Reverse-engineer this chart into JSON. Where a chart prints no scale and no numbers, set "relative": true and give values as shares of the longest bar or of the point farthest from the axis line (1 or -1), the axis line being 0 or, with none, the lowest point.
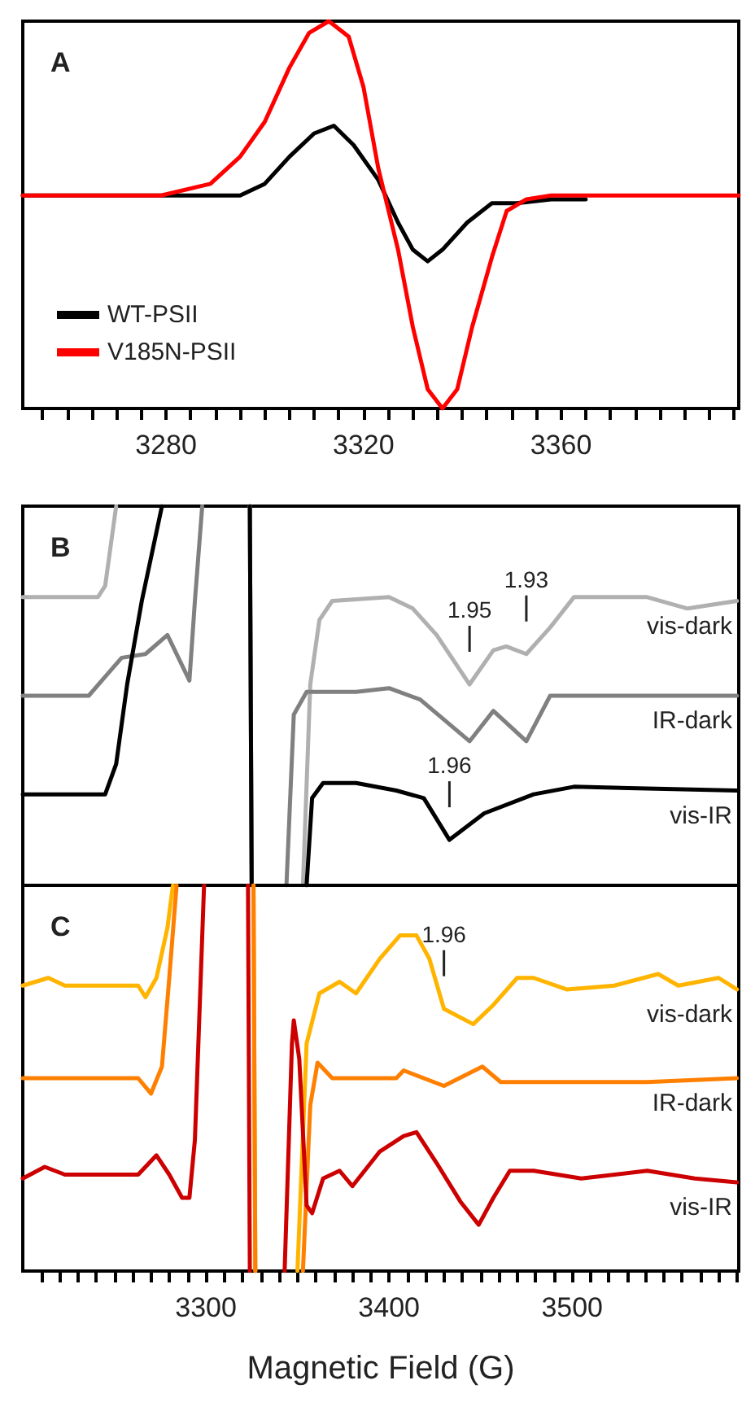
{
  "chart_data": [
    {
      "type": "line",
      "title": "A",
      "relative": true,
      "legend": "bottom left",
      "tick_labels": "x",
      "xlim": [
        3251,
        3396
      ],
      "xticks": [
        {
          "value": 3255,
          "label": null
        },
        {
          "value": 3260,
          "label": null
        },
        {
          "value": 3265,
          "label": null
        },
        {
          "value": 3270,
          "label": null
        },
        {
          "value": 3275,
          "label": null
        },
        3280,
        {
          "value": 3285,
          "label": null
        },
        {
          "value": 3290,
          "label": null
        },
        {
          "value": 3295,
          "label": null
        },
        {
          "value": 3300,
          "label": null
        },
        {
          "value": 3305,
          "label": null
        },
        {
          "value": 3310,
          "label": null
        },
        {
          "value": 3315,
          "label": null
        },
        3320,
        {
          "value": 3325,
          "label": null
        },
        {
          "value": 3330,
          "label": null
        },
        {
          "value": 3335,
          "label": null
        },
        {
          "value": 3340,
          "label": null
        },
        {
          "value": 3345,
          "label": null
        },
        {
          "value": 3350,
          "label": null
        },
        {
          "value": 3355,
          "label": null
        },
        3360,
        {
          "value": 3365,
          "label": null
        },
        {
          "value": 3370,
          "label": null
        },
        {
          "value": 3375,
          "label": null
        },
        {
          "value": 3380,
          "label": null
        },
        {
          "value": 3385,
          "label": null
        },
        {
          "value": 3390,
          "label": null
        },
        {
          "value": 3395,
          "label": null
        }
      ],
      "series": [
        {
          "name": "WT-PSII",
          "color": "#000000",
          "x": [
            3251,
            3295,
            3300,
            3305,
            3310,
            3314,
            3318,
            3323,
            3327,
            3330,
            3333,
            3336,
            3341,
            3346,
            3351,
            3358,
            3365
          ],
          "values": [
            0.55,
            0.55,
            0.58,
            0.65,
            0.71,
            0.73,
            0.68,
            0.59,
            0.48,
            0.41,
            0.38,
            0.41,
            0.48,
            0.53,
            0.53,
            0.54,
            0.54
          ]
        },
        {
          "name": "V185N-PSII",
          "color": "#ff0000",
          "x": [
            3251,
            3276,
            3279,
            3289,
            3295,
            3300,
            3305,
            3309,
            3313,
            3317,
            3320,
            3323,
            3327,
            3330,
            3333,
            3336,
            3339,
            3342,
            3346,
            3349,
            3353,
            3358,
            3396
          ],
          "values": [
            0.55,
            0.55,
            0.55,
            0.58,
            0.65,
            0.74,
            0.88,
            0.97,
            1,
            0.96,
            0.83,
            0.62,
            0.41,
            0.21,
            0.05,
            0,
            0.05,
            0.21,
            0.39,
            0.51,
            0.54,
            0.55,
            0.55
          ]
        }
      ]
    },
    {
      "type": "line",
      "title": "B",
      "relative": true,
      "tick_labels": false,
      "xlim": [
        3200,
        3591
      ],
      "annotations": [
        {
          "text": "1.95",
          "x": 3444,
          "y": 0.53
        },
        {
          "text": "1.93",
          "x": 3475,
          "y": 0.61
        },
        {
          "text": "1.96",
          "x": 3433,
          "y": 0.12
        }
      ],
      "series": [
        {
          "name": "vis-dark",
          "color": "#b0b0b0",
          "x": [
            3200,
            3241,
            3245,
            3251,
            3290,
            3324,
            3325,
            3340,
            3353,
            3357,
            3362,
            3369,
            3400,
            3413,
            3426,
            3444,
            3457,
            3464,
            3475,
            3488,
            3501,
            3541,
            3563,
            3590
          ],
          "values": [
            0.76,
            0.76,
            0.79,
            1,
            null,
            1,
            0,
            null,
            0,
            0.53,
            0.7,
            0.75,
            0.76,
            0.73,
            0.66,
            0.53,
            0.62,
            0.63,
            0.61,
            0.68,
            0.76,
            0.76,
            0.73,
            0.75
          ]
        },
        {
          "name": "IR-dark",
          "color": "#808080",
          "x": [
            3200,
            3236,
            3245,
            3254,
            3267,
            3279,
            3285,
            3291,
            3294,
            3298,
            3310,
            3324,
            3325,
            3335,
            3344,
            3348,
            3355,
            3369,
            3382,
            3400,
            3417,
            3444,
            3457,
            3475,
            3488,
            3505,
            3590
          ],
          "values": [
            0.5,
            0.5,
            0.55,
            0.6,
            0.61,
            0.66,
            0.6,
            0.54,
            0.75,
            1,
            null,
            1,
            0,
            null,
            0,
            0.45,
            0.51,
            0.51,
            0.51,
            0.52,
            0.49,
            0.38,
            0.46,
            0.38,
            0.5,
            0.5,
            0.5
          ]
        },
        {
          "name": "vis-IR",
          "color": "#000000",
          "x": [
            3200,
            3245,
            3251,
            3257,
            3265,
            3276,
            3300,
            3324,
            3325,
            3340,
            3355,
            3358,
            3364,
            3382,
            3404,
            3419,
            3433,
            3452,
            3479,
            3501,
            3590
          ],
          "values": [
            0.24,
            0.24,
            0.32,
            0.53,
            0.75,
            1,
            null,
            1,
            0,
            null,
            0,
            0.23,
            0.27,
            0.27,
            0.25,
            0.23,
            0.12,
            0.19,
            0.24,
            0.26,
            0.25
          ]
        }
      ]
    },
    {
      "type": "line",
      "title": "C",
      "relative": true,
      "tick_labels": "x",
      "xlabel": "Magnetic Field (G)",
      "xlim": [
        3200,
        3591
      ],
      "xticks": [
        {
          "value": 3210,
          "label": null
        },
        {
          "value": 3220,
          "label": null
        },
        {
          "value": 3230,
          "label": null
        },
        {
          "value": 3240,
          "label": null
        },
        {
          "value": 3250,
          "label": null
        },
        {
          "value": 3260,
          "label": null
        },
        {
          "value": 3270,
          "label": null
        },
        {
          "value": 3280,
          "label": null
        },
        {
          "value": 3290,
          "label": null
        },
        3300,
        {
          "value": 3310,
          "label": null
        },
        {
          "value": 3320,
          "label": null
        },
        {
          "value": 3330,
          "label": null
        },
        {
          "value": 3340,
          "label": null
        },
        {
          "value": 3350,
          "label": null
        },
        {
          "value": 3360,
          "label": null
        },
        {
          "value": 3370,
          "label": null
        },
        {
          "value": 3380,
          "label": null
        },
        {
          "value": 3390,
          "label": null
        },
        3400,
        {
          "value": 3410,
          "label": null
        },
        {
          "value": 3420,
          "label": null
        },
        {
          "value": 3430,
          "label": null
        },
        {
          "value": 3440,
          "label": null
        },
        {
          "value": 3450,
          "label": null
        },
        {
          "value": 3460,
          "label": null
        },
        {
          "value": 3470,
          "label": null
        },
        {
          "value": 3480,
          "label": null
        },
        {
          "value": 3490,
          "label": null
        },
        3500,
        {
          "value": 3510,
          "label": null
        },
        {
          "value": 3520,
          "label": null
        },
        {
          "value": 3530,
          "label": null
        },
        {
          "value": 3540,
          "label": null
        },
        {
          "value": 3550,
          "label": null
        },
        {
          "value": 3560,
          "label": null
        },
        {
          "value": 3570,
          "label": null
        },
        {
          "value": 3580,
          "label": null
        },
        {
          "value": 3590,
          "label": null
        }
      ],
      "annotations": [
        {
          "text": "1.96",
          "x": 3430,
          "y": 0.68
        }
      ],
      "series": [
        {
          "name": "vis-dark",
          "color": "#ffb400",
          "x": [
            3200,
            3214,
            3223,
            3263,
            3267,
            3273,
            3279,
            3282,
            3300,
            3326,
            3327,
            3340,
            3350,
            3355,
            3362,
            3373,
            3382,
            3395,
            3406,
            3415,
            3422,
            3430,
            3446,
            3457,
            3470,
            3479,
            3497,
            3523,
            3547,
            3558,
            3580,
            3590
          ],
          "values": [
            0.74,
            0.76,
            0.74,
            0.74,
            0.71,
            0.76,
            0.89,
            1,
            null,
            1,
            0,
            null,
            0,
            0.59,
            0.72,
            0.75,
            0.72,
            0.81,
            0.87,
            0.87,
            0.81,
            0.68,
            0.64,
            0.69,
            0.76,
            0.76,
            0.73,
            0.74,
            0.77,
            0.74,
            0.76,
            0.73
          ]
        },
        {
          "name": "IR-dark",
          "color": "#ff7f00",
          "x": [
            3200,
            3263,
            3270,
            3276,
            3280,
            3284,
            3300,
            3326,
            3327,
            3340,
            3353,
            3357,
            3361,
            3369,
            3404,
            3408,
            3430,
            3451,
            3461,
            3541,
            3590
          ],
          "values": [
            0.5,
            0.5,
            0.46,
            0.53,
            0.76,
            1,
            null,
            1,
            0,
            null,
            0,
            0.43,
            0.54,
            0.5,
            0.5,
            0.52,
            0.48,
            0.53,
            0.49,
            0.49,
            0.5
          ]
        },
        {
          "name": "vis-IR",
          "color": "#cc0000",
          "x": [
            3200,
            3212,
            3223,
            3263,
            3273,
            3280,
            3287,
            3291,
            3294,
            3299,
            3310,
            3323,
            3324,
            3333,
            3343,
            3347,
            3348,
            3351,
            3355,
            3358,
            3364,
            3373,
            3380,
            3395,
            3408,
            3415,
            3426,
            3439,
            3449,
            3457,
            3466,
            3479,
            3505,
            3541,
            3567,
            3590
          ],
          "values": [
            0.24,
            0.27,
            0.25,
            0.25,
            0.3,
            0.25,
            0.19,
            0.19,
            0.34,
            1,
            null,
            1,
            0,
            null,
            0,
            0.59,
            0.65,
            0.55,
            0.17,
            0.15,
            0.24,
            0.26,
            0.22,
            0.31,
            0.35,
            0.36,
            0.28,
            0.18,
            0.12,
            0.19,
            0.26,
            0.26,
            0.24,
            0.26,
            0.24,
            0.23
          ]
        }
      ]
    }
  ]
}
